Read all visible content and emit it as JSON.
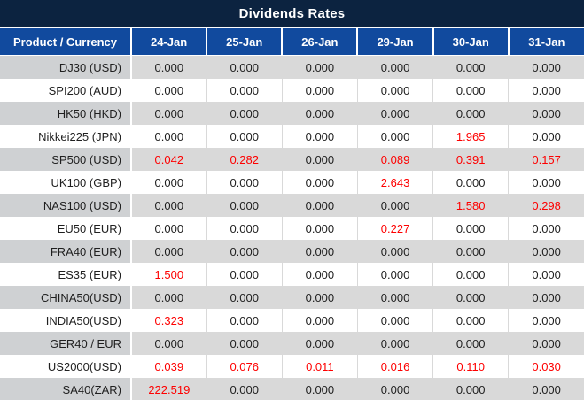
{
  "title": "Dividends Rates",
  "colors": {
    "title_bg": "#0c2340",
    "header_bg": "#114a9e",
    "stripe_gray": "#d9d9d9",
    "product_stripe_gray": "#cfd1d3",
    "negative_red": "#fe0000",
    "value_text": "#1f1f1f"
  },
  "table": {
    "product_header": "Product / Currency",
    "columns": [
      "24-Jan",
      "25-Jan",
      "26-Jan",
      "29-Jan",
      "30-Jan",
      "31-Jan"
    ],
    "rows": [
      {
        "product": "DJ30 (USD)",
        "values": [
          "0.000",
          "0.000",
          "0.000",
          "0.000",
          "0.000",
          "0.000"
        ],
        "red": [
          false,
          false,
          false,
          false,
          false,
          false
        ]
      },
      {
        "product": "SPI200 (AUD)",
        "values": [
          "0.000",
          "0.000",
          "0.000",
          "0.000",
          "0.000",
          "0.000"
        ],
        "red": [
          false,
          false,
          false,
          false,
          false,
          false
        ]
      },
      {
        "product": "HK50 (HKD)",
        "values": [
          "0.000",
          "0.000",
          "0.000",
          "0.000",
          "0.000",
          "0.000"
        ],
        "red": [
          false,
          false,
          false,
          false,
          false,
          false
        ]
      },
      {
        "product": "Nikkei225 (JPN)",
        "values": [
          "0.000",
          "0.000",
          "0.000",
          "0.000",
          "1.965",
          "0.000"
        ],
        "red": [
          false,
          false,
          false,
          false,
          true,
          false
        ]
      },
      {
        "product": "SP500 (USD)",
        "values": [
          "0.042",
          "0.282",
          "0.000",
          "0.089",
          "0.391",
          "0.157"
        ],
        "red": [
          true,
          true,
          false,
          true,
          true,
          true
        ]
      },
      {
        "product": "UK100 (GBP)",
        "values": [
          "0.000",
          "0.000",
          "0.000",
          "2.643",
          "0.000",
          "0.000"
        ],
        "red": [
          false,
          false,
          false,
          true,
          false,
          false
        ]
      },
      {
        "product": "NAS100 (USD)",
        "values": [
          "0.000",
          "0.000",
          "0.000",
          "0.000",
          "1.580",
          "0.298"
        ],
        "red": [
          false,
          false,
          false,
          false,
          true,
          true
        ]
      },
      {
        "product": "EU50 (EUR)",
        "values": [
          "0.000",
          "0.000",
          "0.000",
          "0.227",
          "0.000",
          "0.000"
        ],
        "red": [
          false,
          false,
          false,
          true,
          false,
          false
        ]
      },
      {
        "product": "FRA40 (EUR)",
        "values": [
          "0.000",
          "0.000",
          "0.000",
          "0.000",
          "0.000",
          "0.000"
        ],
        "red": [
          false,
          false,
          false,
          false,
          false,
          false
        ]
      },
      {
        "product": "ES35 (EUR)",
        "values": [
          "1.500",
          "0.000",
          "0.000",
          "0.000",
          "0.000",
          "0.000"
        ],
        "red": [
          true,
          false,
          false,
          false,
          false,
          false
        ]
      },
      {
        "product": "CHINA50(USD)",
        "values": [
          "0.000",
          "0.000",
          "0.000",
          "0.000",
          "0.000",
          "0.000"
        ],
        "red": [
          false,
          false,
          false,
          false,
          false,
          false
        ]
      },
      {
        "product": "INDIA50(USD)",
        "values": [
          "0.323",
          "0.000",
          "0.000",
          "0.000",
          "0.000",
          "0.000"
        ],
        "red": [
          true,
          false,
          false,
          false,
          false,
          false
        ]
      },
      {
        "product": "GER40 / EUR",
        "values": [
          "0.000",
          "0.000",
          "0.000",
          "0.000",
          "0.000",
          "0.000"
        ],
        "red": [
          false,
          false,
          false,
          false,
          false,
          false
        ]
      },
      {
        "product": "US2000(USD)",
        "values": [
          "0.039",
          "0.076",
          "0.011",
          "0.016",
          "0.110",
          "0.030"
        ],
        "red": [
          true,
          true,
          true,
          true,
          true,
          true
        ]
      },
      {
        "product": "SA40(ZAR)",
        "values": [
          "222.519",
          "0.000",
          "0.000",
          "0.000",
          "0.000",
          "0.000"
        ],
        "red": [
          true,
          false,
          false,
          false,
          false,
          false
        ]
      }
    ]
  }
}
